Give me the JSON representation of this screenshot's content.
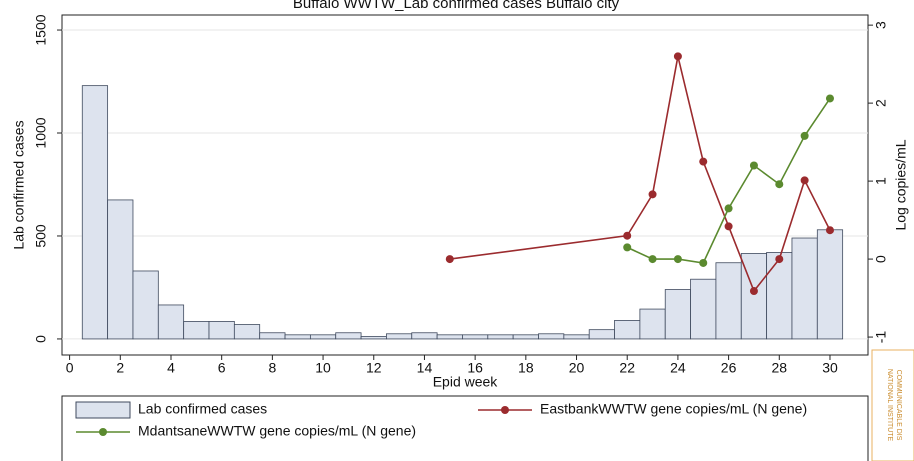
{
  "chart_data": {
    "type": "combo",
    "title": "Buffalo WWTW_Lab confirmed cases Buffalo city",
    "xlabel": "Epid week",
    "ylabel": "Lab confirmed cases",
    "y2label": "Log copies/mL",
    "xlim": [
      -0.3,
      31.5
    ],
    "xticks": [
      0,
      2,
      4,
      6,
      8,
      10,
      12,
      14,
      16,
      18,
      20,
      22,
      24,
      26,
      28,
      30
    ],
    "ylim": [
      -78,
      1573
    ],
    "yticks": [
      0,
      500,
      1000,
      1500
    ],
    "y2lim": [
      -1.23,
      3.13
    ],
    "y2ticks": [
      -1,
      0,
      1,
      2,
      3
    ],
    "grid": true,
    "series": [
      {
        "name": "Lab confirmed cases",
        "type": "bar",
        "color": "#dde3ee",
        "axis": "y",
        "x": [
          1,
          2,
          3,
          4,
          5,
          6,
          7,
          8,
          9,
          10,
          11,
          12,
          13,
          14,
          15,
          16,
          17,
          18,
          19,
          20,
          21,
          22,
          23,
          24,
          25,
          26,
          27,
          28,
          29,
          30
        ],
        "values": [
          1230,
          675,
          330,
          165,
          85,
          85,
          70,
          30,
          20,
          20,
          30,
          12,
          25,
          30,
          20,
          20,
          20,
          20,
          25,
          20,
          45,
          90,
          145,
          240,
          290,
          370,
          415,
          420,
          490,
          530
        ]
      },
      {
        "name": "EastbankWWTW gene copies/mL (N gene)",
        "type": "line",
        "color": "#9b2b2e",
        "axis": "y2",
        "x": [
          15,
          22,
          23,
          24,
          25,
          26,
          27,
          28,
          29,
          30
        ],
        "values": [
          0,
          0.3,
          0.83,
          2.6,
          1.25,
          0.42,
          -0.41,
          0,
          1.01,
          0.37
        ]
      },
      {
        "name": "MdantsaneWWTW gene copies/mL (N gene)",
        "type": "line",
        "color": "#5b8a2f",
        "axis": "y2",
        "x": [
          22,
          23,
          24,
          25,
          26,
          27,
          28,
          29,
          30
        ],
        "values": [
          0.15,
          0,
          0,
          -0.05,
          0.65,
          1.2,
          0.96,
          1.58,
          2.06
        ]
      }
    ]
  },
  "logo": {
    "line1": "NATIONAL INSTITUTE",
    "line2": "COMMUNICABLE DIS"
  }
}
